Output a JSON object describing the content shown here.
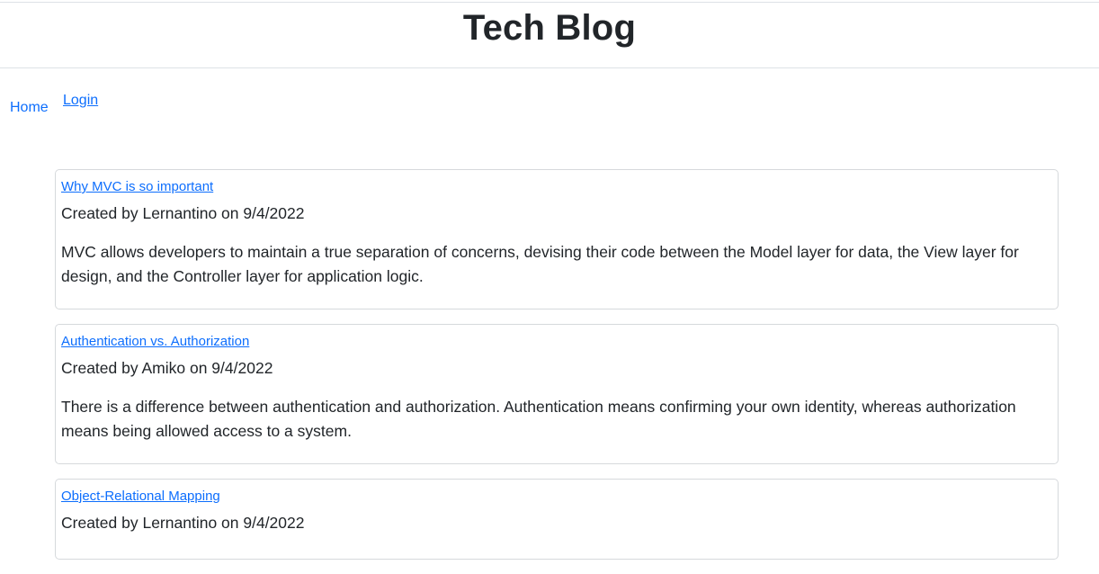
{
  "header": {
    "title": "Tech Blog"
  },
  "nav": {
    "home_label": "Home",
    "login_label": "Login"
  },
  "posts": [
    {
      "title": "Why MVC is so important",
      "meta": "Created by Lernantino on 9/4/2022",
      "body": "MVC allows developers to maintain a true separation of concerns, devising their code between the Model layer for data, the View layer for design, and the Controller layer for application logic."
    },
    {
      "title": "Authentication vs. Authorization",
      "meta": "Created by Amiko on 9/4/2022",
      "body": "There is a difference between authentication and authorization. Authentication means confirming your own identity, whereas authorization means being allowed access to a system."
    },
    {
      "title": "Object-Relational Mapping",
      "meta": "Created by Lernantino on 9/4/2022",
      "body": ""
    }
  ],
  "colors": {
    "link": "#0d6efd",
    "text": "#212529",
    "border": "#dee2e6"
  }
}
